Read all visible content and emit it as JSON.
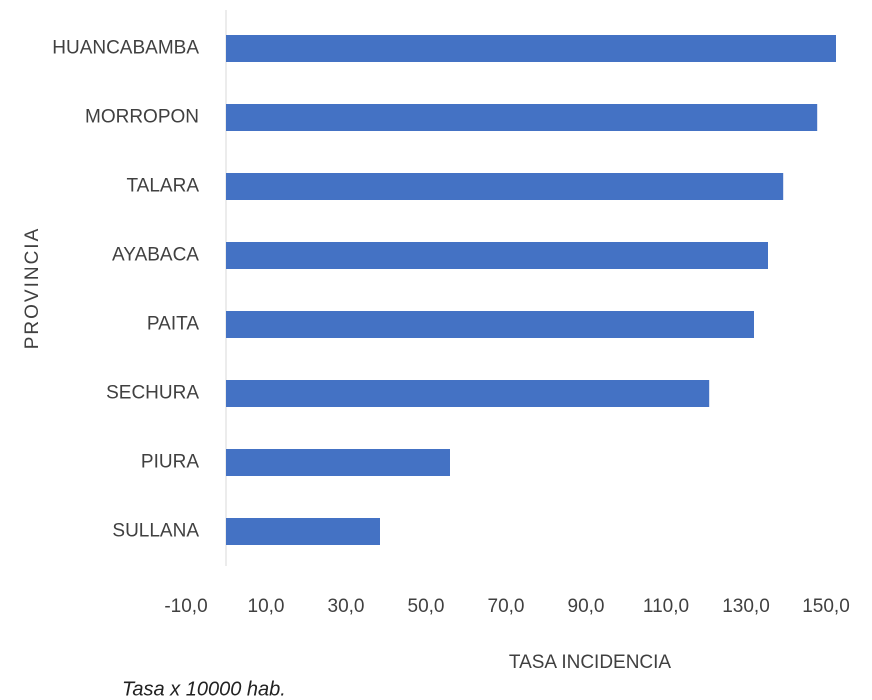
{
  "chart_data": {
    "type": "bar",
    "orientation": "horizontal",
    "categories": [
      "HUANCABAMBA",
      "MORROPON",
      "TALARA",
      "AYABACA",
      "PAITA",
      "SECHURA",
      "PIURA",
      "SULLANA"
    ],
    "values": [
      152.5,
      147.8,
      139.3,
      135.5,
      132,
      120.8,
      56,
      38.5
    ],
    "color": "#4472c4",
    "xlim": [
      -10,
      160
    ],
    "xticks": [
      {
        "value": -10,
        "label": "-10,0"
      },
      {
        "value": 10,
        "label": "10,0"
      },
      {
        "value": 30,
        "label": "30,0"
      },
      {
        "value": 50,
        "label": "50,0"
      },
      {
        "value": 70,
        "label": "70,0"
      },
      {
        "value": 90,
        "label": "90,0"
      },
      {
        "value": 110,
        "label": "110,0"
      },
      {
        "value": 130,
        "label": "130,0"
      },
      {
        "value": 150,
        "label": "150,0"
      }
    ],
    "xlabel": "TASA INCIDENCIA",
    "ylabel": "PROVINCIA",
    "note": "Tasa x 10000 hab.",
    "grid": false
  }
}
